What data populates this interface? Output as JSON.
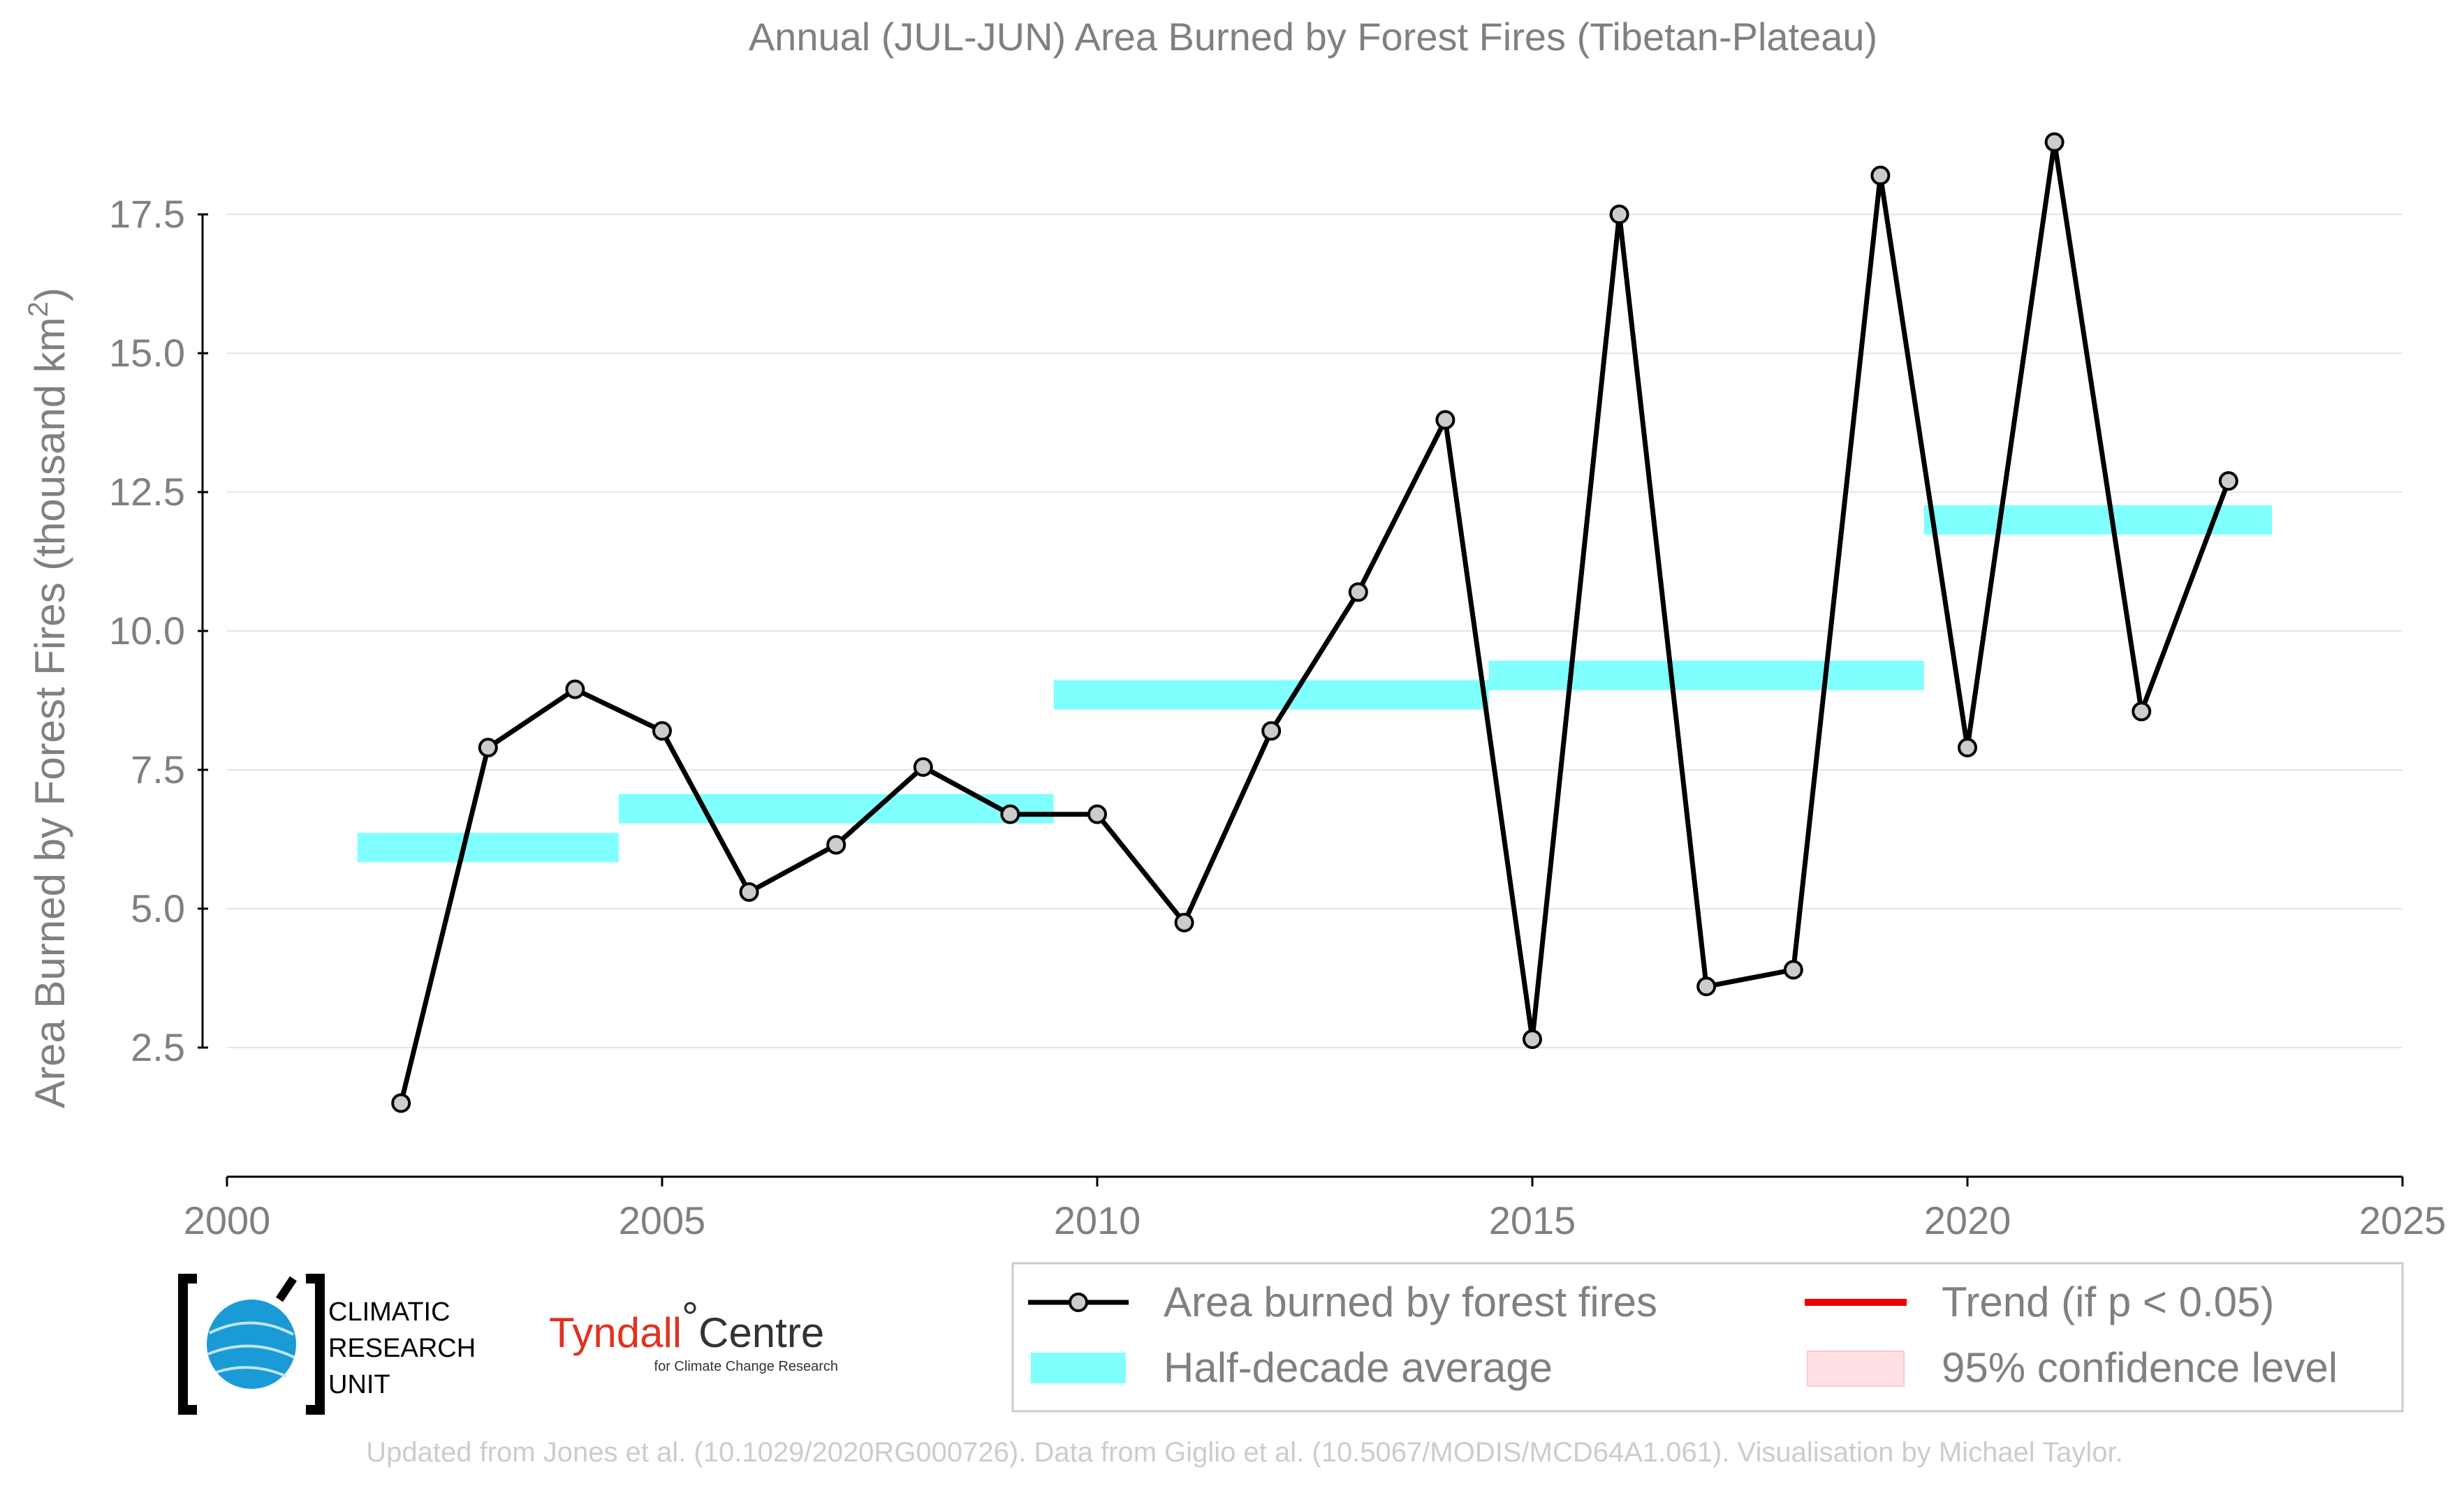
{
  "chart_data": {
    "type": "line",
    "title": "Annual (JUL-JUN) Area Burned by Forest Fires (Tibetan-Plateau)",
    "ylabel_main": "Area Burned by Forest Fires (thousand km",
    "ylabel_sup": "2",
    "ylabel_close": ")",
    "xlim": [
      2000,
      2025
    ],
    "ylim": [
      0.25,
      19.6
    ],
    "x_ticks": [
      2000,
      2005,
      2010,
      2015,
      2020,
      2025
    ],
    "x_tick_labels": [
      "2000",
      "2005",
      "2010",
      "2015",
      "2020",
      "2025"
    ],
    "y_ticks": [
      2.5,
      5.0,
      7.5,
      10.0,
      12.5,
      15.0,
      17.5
    ],
    "y_tick_labels": [
      "2.5",
      "5.0",
      "7.5",
      "10.0",
      "12.5",
      "15.0",
      "17.5"
    ],
    "grid": "horizontal",
    "legend_position": "bottom-right",
    "series": [
      {
        "name": "Area burned by forest fires",
        "color": "#000000",
        "marker_fill": "#cccccc",
        "x": [
          2002,
          2003,
          2004,
          2005,
          2006,
          2007,
          2008,
          2009,
          2010,
          2011,
          2012,
          2013,
          2014,
          2015,
          2016,
          2017,
          2018,
          2019,
          2020,
          2021,
          2022,
          2023
        ],
        "y": [
          1.5,
          7.9,
          8.95,
          8.2,
          5.3,
          6.15,
          7.55,
          6.7,
          6.7,
          4.75,
          8.2,
          10.7,
          13.8,
          2.65,
          17.5,
          3.6,
          3.9,
          18.2,
          7.9,
          18.8,
          8.55,
          12.7
        ]
      }
    ],
    "half_decade_averages": {
      "name": "Half-decade average",
      "color": "#80ffff",
      "segments": [
        {
          "x_start": 2001.5,
          "x_end": 2004.5,
          "y": 6.1
        },
        {
          "x_start": 2004.5,
          "x_end": 2009.5,
          "y": 6.8
        },
        {
          "x_start": 2009.5,
          "x_end": 2014.5,
          "y": 8.85
        },
        {
          "x_start": 2014.5,
          "x_end": 2019.5,
          "y": 9.2
        },
        {
          "x_start": 2019.5,
          "x_end": 2023.5,
          "y": 12.0
        }
      ]
    },
    "legend": {
      "line_label": "Area burned by forest fires",
      "average_label": "Half-decade average",
      "trend_label": "Trend (if p < 0.05)",
      "confidence_label": "95% confidence level",
      "trend_color": "#ee0000",
      "confidence_color": "#ffe0e4"
    }
  },
  "logos": {
    "cru_line1": "CLIMATIC",
    "cru_line2": "RESEARCH",
    "cru_line3": "UNIT",
    "tyndall_main": "Tyndall",
    "tyndall_degree": "°",
    "tyndall_centre": "Centre",
    "tyndall_sub": "for Climate Change Research"
  },
  "credit": "Updated from Jones et al. (10.1029/2020RG000726). Data from Giglio et al. (10.5067/MODIS/MCD64A1.061). Visualisation by Michael Taylor."
}
